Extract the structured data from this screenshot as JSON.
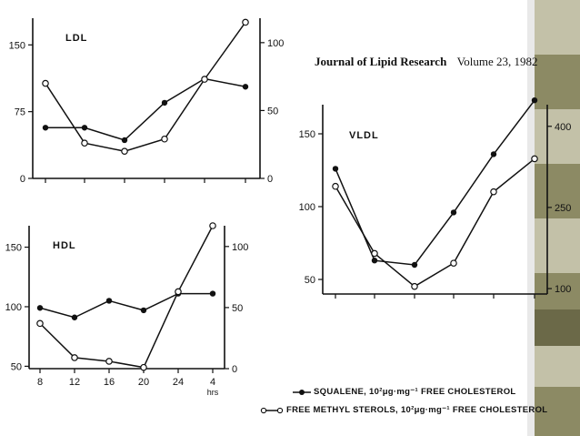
{
  "journal": {
    "name": "Journal of Lipid Research",
    "volume": "Volume 23, 1982"
  },
  "legend": {
    "squalene": "SQUALENE, 10²μg·mg⁻¹ FREE CHOLESTEROL",
    "methyl_sterols": "FREE  METHYL STEROLS, 10²μg·mg⁻¹ FREE CHOLESTEROL"
  },
  "colors": {
    "background": "#e9e9e9",
    "paper": "#ffffff",
    "ink": "#111111",
    "strip_light": "#c3c1a8",
    "strip_mid": "#8c8a64",
    "strip_dark": "#6b6948"
  },
  "chart_data": [
    {
      "type": "line",
      "label": "LDL",
      "x": [
        "8",
        "12",
        "16",
        "20",
        "24",
        "4"
      ],
      "xlim": [
        8,
        28
      ],
      "left_axis": {
        "ticks": [
          0,
          75,
          150
        ],
        "range": [
          0,
          180
        ]
      },
      "right_axis": {
        "ticks": [
          0,
          50,
          100
        ],
        "range": [
          0,
          118
        ]
      },
      "series": [
        {
          "marker": "filled",
          "axis": "left",
          "values": [
            57,
            57,
            43,
            85,
            112,
            103
          ]
        },
        {
          "marker": "open",
          "axis": "right",
          "values": [
            70,
            26,
            20,
            29,
            73,
            115
          ]
        }
      ]
    },
    {
      "type": "line",
      "label": "VLDL",
      "x": [
        "8",
        "12",
        "16",
        "20",
        "24",
        "4"
      ],
      "xlim": [
        8,
        28
      ],
      "left_axis": {
        "ticks": [
          50,
          100,
          150
        ],
        "range": [
          40,
          170
        ]
      },
      "right_axis": {
        "ticks": [
          100,
          250,
          400
        ],
        "range": [
          90,
          440
        ]
      },
      "series": [
        {
          "marker": "filled",
          "axis": "left",
          "values": [
            126,
            63,
            60,
            96,
            136,
            173
          ]
        },
        {
          "marker": "open",
          "axis": "right",
          "values": [
            289,
            165,
            104,
            147,
            279,
            340
          ]
        }
      ]
    },
    {
      "type": "line",
      "label": "HDL",
      "x": [
        "8",
        "12",
        "16",
        "20",
        "24",
        "4"
      ],
      "xlim": [
        8,
        28
      ],
      "xticks": [
        "8",
        "12",
        "16",
        "20",
        "24",
        "4"
      ],
      "xunit": "hrs",
      "left_axis": {
        "ticks": [
          50,
          100,
          150
        ],
        "range": [
          48,
          168
        ]
      },
      "right_axis": {
        "ticks": [
          0,
          50,
          100
        ],
        "range": [
          0,
          117
        ]
      },
      "series": [
        {
          "marker": "filled",
          "axis": "left",
          "values": [
            99,
            91,
            105,
            97,
            111,
            111
          ]
        },
        {
          "marker": "open",
          "axis": "right",
          "values": [
            37,
            9,
            6,
            1,
            63,
            117
          ]
        }
      ]
    }
  ]
}
